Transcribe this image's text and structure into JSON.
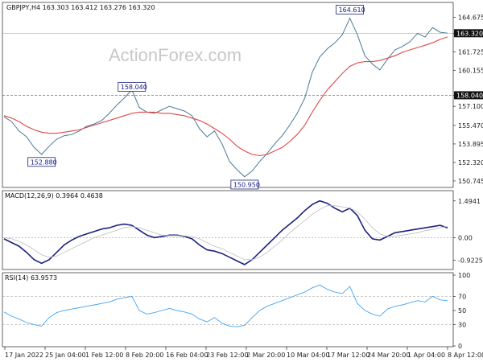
{
  "chart_data": {
    "type": "line",
    "symbol": "GBPJPY",
    "timeframe": "H4",
    "header": "GBPJPY,H4  163.303 163.412 163.276 163.320",
    "watermark": "ActionForex.com",
    "x_labels": [
      "17 Jan 2022",
      "25 Jan 04:00",
      "1 Feb 12:00",
      "8 Feb 20:00",
      "16 Feb 04:00",
      "23 Feb 12:00",
      "2 Mar 20:00",
      "10 Mar 04:00",
      "17 Mar 12:00",
      "24 Mar 20:00",
      "1 Apr 04:00",
      "8 Apr 12:00"
    ],
    "price_panel": {
      "ylim": [
        150.4,
        165.6
      ],
      "ticks": [
        "164.675",
        "163.320",
        "161.725",
        "160.155",
        "158.040",
        "157.100",
        "155.470",
        "153.895",
        "152.320",
        "150.745"
      ],
      "last_price": "163.320",
      "horizontal_levels": [
        "158.040"
      ],
      "callouts": [
        "164.610",
        "158.040",
        "152.880",
        "150.950"
      ],
      "series": [
        {
          "name": "close",
          "color": "#4a7a93",
          "values": [
            156.2,
            155.8,
            155.0,
            154.5,
            153.6,
            153.0,
            153.7,
            154.3,
            154.6,
            154.7,
            155.0,
            155.4,
            155.6,
            155.9,
            156.5,
            157.2,
            157.8,
            158.5,
            157.0,
            156.6,
            156.5,
            156.8,
            157.1,
            156.9,
            156.7,
            156.3,
            155.2,
            154.5,
            155.0,
            153.9,
            152.4,
            151.7,
            151.1,
            151.6,
            152.4,
            153.1,
            153.9,
            154.6,
            155.5,
            156.5,
            157.8,
            160.0,
            161.3,
            162.0,
            162.5,
            163.2,
            164.6,
            163.2,
            161.4,
            160.7,
            160.2,
            161.1,
            161.9,
            162.2,
            162.6,
            163.3,
            163.0,
            163.8,
            163.4,
            163.32
          ]
        },
        {
          "name": "moving average",
          "color": "#e04848",
          "values": [
            156.3,
            156.1,
            155.8,
            155.4,
            155.1,
            154.9,
            154.8,
            154.8,
            154.9,
            155.0,
            155.1,
            155.3,
            155.5,
            155.7,
            155.9,
            156.1,
            156.3,
            156.5,
            156.6,
            156.6,
            156.6,
            156.5,
            156.5,
            156.4,
            156.3,
            156.1,
            155.9,
            155.6,
            155.2,
            154.8,
            154.3,
            153.7,
            153.3,
            153.0,
            152.9,
            153.0,
            153.3,
            153.6,
            154.1,
            154.7,
            155.5,
            156.6,
            157.6,
            158.5,
            159.2,
            159.9,
            160.5,
            160.8,
            160.9,
            160.9,
            161.0,
            161.2,
            161.4,
            161.7,
            161.9,
            162.1,
            162.3,
            162.5,
            162.8,
            163.0
          ]
        }
      ]
    },
    "macd_panel": {
      "label": "MACD(12,26,9) 0.3964 0.4638",
      "ylim": [
        -1.2,
        1.75
      ],
      "ticks": [
        "1.4941",
        "0.00",
        "-0.9225"
      ],
      "series": [
        {
          "name": "macd",
          "color": "#1a237e",
          "values": [
            -0.05,
            -0.2,
            -0.35,
            -0.6,
            -0.9,
            -1.05,
            -0.9,
            -0.6,
            -0.3,
            -0.1,
            0.05,
            0.15,
            0.25,
            0.35,
            0.4,
            0.5,
            0.55,
            0.5,
            0.3,
            0.1,
            0.0,
            0.05,
            0.1,
            0.1,
            0.05,
            -0.05,
            -0.3,
            -0.5,
            -0.55,
            -0.65,
            -0.8,
            -0.95,
            -1.1,
            -0.9,
            -0.6,
            -0.3,
            0.0,
            0.3,
            0.55,
            0.8,
            1.1,
            1.35,
            1.5,
            1.4,
            1.2,
            1.05,
            1.2,
            0.9,
            0.3,
            -0.05,
            -0.1,
            0.05,
            0.2,
            0.25,
            0.3,
            0.35,
            0.4,
            0.45,
            0.5,
            0.3964
          ]
        },
        {
          "name": "signal",
          "color": "#bdbdbd",
          "values": [
            0.0,
            -0.05,
            -0.15,
            -0.3,
            -0.5,
            -0.7,
            -0.8,
            -0.75,
            -0.6,
            -0.45,
            -0.3,
            -0.15,
            0.0,
            0.1,
            0.2,
            0.3,
            0.4,
            0.45,
            0.4,
            0.3,
            0.2,
            0.1,
            0.08,
            0.08,
            0.07,
            0.05,
            -0.05,
            -0.2,
            -0.35,
            -0.45,
            -0.6,
            -0.75,
            -0.9,
            -0.9,
            -0.8,
            -0.6,
            -0.35,
            -0.1,
            0.2,
            0.45,
            0.7,
            0.95,
            1.15,
            1.3,
            1.3,
            1.25,
            1.2,
            1.05,
            0.75,
            0.4,
            0.15,
            0.05,
            0.05,
            0.1,
            0.15,
            0.2,
            0.28,
            0.33,
            0.4,
            0.4638
          ]
        }
      ]
    },
    "rsi_panel": {
      "label": "RSI(14) 63.9573",
      "ylim": [
        0,
        100
      ],
      "ticks": [
        "100",
        "70",
        "50",
        "30",
        "0"
      ],
      "series": [
        {
          "name": "rsi",
          "color": "#42a5f5",
          "values": [
            48,
            42,
            38,
            33,
            30,
            28,
            40,
            47,
            50,
            52,
            54,
            56,
            58,
            60,
            62,
            66,
            68,
            70,
            50,
            45,
            47,
            50,
            53,
            50,
            48,
            45,
            38,
            34,
            40,
            32,
            28,
            27,
            29,
            40,
            50,
            56,
            60,
            64,
            68,
            72,
            76,
            82,
            86,
            80,
            76,
            74,
            84,
            60,
            50,
            45,
            42,
            52,
            56,
            58,
            61,
            64,
            62,
            70,
            65,
            63.96
          ]
        }
      ]
    }
  }
}
